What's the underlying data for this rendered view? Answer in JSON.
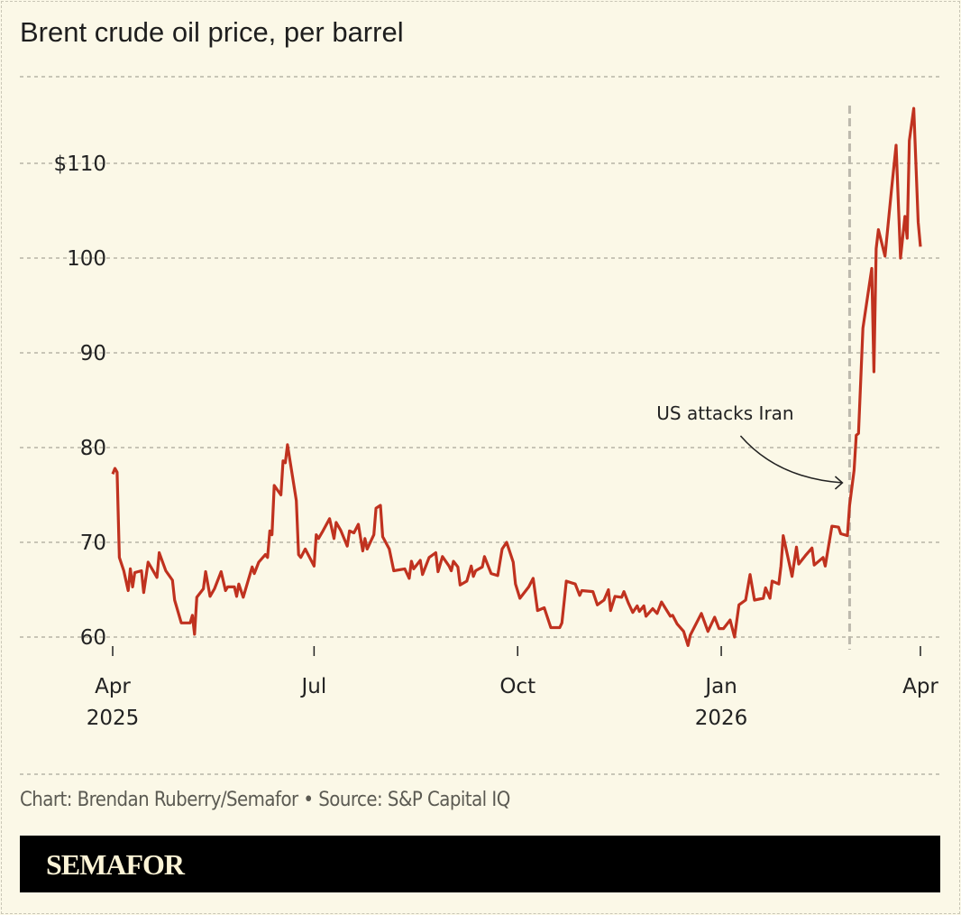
{
  "title": "Brent crude oil price, per barrel",
  "credit": "Chart: Brendan Ruberry/Semafor • Source: S&P Capital IQ",
  "brand": "SEMAFOR",
  "chart_data": {
    "type": "line",
    "title": "Brent crude oil price, per barrel",
    "xlabel": "",
    "ylabel": "",
    "xlim": [
      "2025-04-01",
      "2026-04-01"
    ],
    "ylim": [
      58,
      118
    ],
    "grid": true,
    "line_color": "#c0321f",
    "y_ticks": [
      {
        "value": 60,
        "label": "60"
      },
      {
        "value": 70,
        "label": "70"
      },
      {
        "value": 80,
        "label": "80"
      },
      {
        "value": 90,
        "label": "90"
      },
      {
        "value": 100,
        "label": "100"
      },
      {
        "value": 110,
        "label": "$110"
      }
    ],
    "x_ticks": [
      {
        "date": "2025-04-01",
        "label": "Apr",
        "year": "2025"
      },
      {
        "date": "2025-07-01",
        "label": "Jul",
        "year": ""
      },
      {
        "date": "2025-10-01",
        "label": "Oct",
        "year": ""
      },
      {
        "date": "2026-01-01",
        "label": "Jan",
        "year": "2026"
      },
      {
        "date": "2026-04-01",
        "label": "Apr",
        "year": ""
      }
    ],
    "annotation": {
      "date": "2026-02-28",
      "label": "US attacks Iran"
    },
    "series": [
      {
        "points": [
          [
            "2025-04-01",
            77.2
          ],
          [
            "2025-04-02",
            77.8
          ],
          [
            "2025-04-03",
            77.4
          ],
          [
            "2025-04-04",
            68.4
          ],
          [
            "2025-04-06",
            67.0
          ],
          [
            "2025-04-08",
            64.9
          ],
          [
            "2025-04-09",
            67.2
          ],
          [
            "2025-04-10",
            65.3
          ],
          [
            "2025-04-11",
            66.8
          ],
          [
            "2025-04-14",
            67.0
          ],
          [
            "2025-04-15",
            64.7
          ],
          [
            "2025-04-17",
            67.9
          ],
          [
            "2025-04-21",
            66.3
          ],
          [
            "2025-04-22",
            68.9
          ],
          [
            "2025-04-25",
            67.0
          ],
          [
            "2025-04-28",
            66.0
          ],
          [
            "2025-04-29",
            63.9
          ],
          [
            "2025-05-02",
            61.5
          ],
          [
            "2025-05-06",
            61.5
          ],
          [
            "2025-05-07",
            62.3
          ],
          [
            "2025-05-08",
            60.3
          ],
          [
            "2025-05-09",
            64.2
          ],
          [
            "2025-05-12",
            65.1
          ],
          [
            "2025-05-13",
            66.9
          ],
          [
            "2025-05-15",
            64.3
          ],
          [
            "2025-05-17",
            65.1
          ],
          [
            "2025-05-20",
            66.9
          ],
          [
            "2025-05-22",
            64.9
          ],
          [
            "2025-05-23",
            65.3
          ],
          [
            "2025-05-26",
            65.3
          ],
          [
            "2025-05-27",
            64.3
          ],
          [
            "2025-05-28",
            65.6
          ],
          [
            "2025-05-30",
            64.2
          ],
          [
            "2025-06-03",
            67.4
          ],
          [
            "2025-06-04",
            66.7
          ],
          [
            "2025-06-06",
            67.9
          ],
          [
            "2025-06-09",
            68.7
          ],
          [
            "2025-06-10",
            68.4
          ],
          [
            "2025-06-11",
            71.2
          ],
          [
            "2025-06-12",
            70.8
          ],
          [
            "2025-06-13",
            76.0
          ],
          [
            "2025-06-16",
            75.0
          ],
          [
            "2025-06-17",
            78.6
          ],
          [
            "2025-06-18",
            78.4
          ],
          [
            "2025-06-19",
            80.3
          ],
          [
            "2025-06-23",
            74.4
          ],
          [
            "2025-06-24",
            68.7
          ],
          [
            "2025-06-25",
            68.4
          ],
          [
            "2025-06-27",
            69.3
          ],
          [
            "2025-07-01",
            67.5
          ],
          [
            "2025-07-02",
            70.8
          ],
          [
            "2025-07-03",
            70.4
          ],
          [
            "2025-07-05",
            71.2
          ],
          [
            "2025-07-08",
            72.5
          ],
          [
            "2025-07-10",
            70.4
          ],
          [
            "2025-07-11",
            72.1
          ],
          [
            "2025-07-13",
            71.3
          ],
          [
            "2025-07-16",
            69.6
          ],
          [
            "2025-07-17",
            71.2
          ],
          [
            "2025-07-19",
            71.0
          ],
          [
            "2025-07-21",
            71.9
          ],
          [
            "2025-07-23",
            69.1
          ],
          [
            "2025-07-24",
            70.4
          ],
          [
            "2025-07-25",
            69.3
          ],
          [
            "2025-07-28",
            70.8
          ],
          [
            "2025-07-29",
            73.6
          ],
          [
            "2025-07-31",
            73.9
          ],
          [
            "2025-08-01",
            70.6
          ],
          [
            "2025-08-04",
            69.3
          ],
          [
            "2025-08-06",
            67.0
          ],
          [
            "2025-08-11",
            67.2
          ],
          [
            "2025-08-13",
            66.2
          ],
          [
            "2025-08-14",
            68.0
          ],
          [
            "2025-08-15",
            67.2
          ],
          [
            "2025-08-18",
            68.1
          ],
          [
            "2025-08-19",
            66.6
          ],
          [
            "2025-08-22",
            68.4
          ],
          [
            "2025-08-25",
            68.9
          ],
          [
            "2025-08-26",
            66.9
          ],
          [
            "2025-08-28",
            68.5
          ],
          [
            "2025-08-31",
            67.5
          ],
          [
            "2025-09-01",
            67.0
          ],
          [
            "2025-09-02",
            68.0
          ],
          [
            "2025-09-04",
            67.4
          ],
          [
            "2025-09-05",
            65.5
          ],
          [
            "2025-09-08",
            65.9
          ],
          [
            "2025-09-10",
            67.5
          ],
          [
            "2025-09-11",
            66.4
          ],
          [
            "2025-09-12",
            67.0
          ],
          [
            "2025-09-15",
            67.4
          ],
          [
            "2025-09-16",
            68.5
          ],
          [
            "2025-09-19",
            66.7
          ],
          [
            "2025-09-22",
            66.5
          ],
          [
            "2025-09-24",
            69.3
          ],
          [
            "2025-09-26",
            70.0
          ],
          [
            "2025-09-29",
            67.9
          ],
          [
            "2025-09-30",
            65.6
          ],
          [
            "2025-10-02",
            64.1
          ],
          [
            "2025-10-06",
            65.3
          ],
          [
            "2025-10-08",
            66.2
          ],
          [
            "2025-10-10",
            62.8
          ],
          [
            "2025-10-13",
            63.1
          ],
          [
            "2025-10-16",
            61.0
          ],
          [
            "2025-10-20",
            61.0
          ],
          [
            "2025-10-21",
            61.5
          ],
          [
            "2025-10-23",
            65.9
          ],
          [
            "2025-10-27",
            65.6
          ],
          [
            "2025-10-29",
            64.4
          ],
          [
            "2025-10-30",
            64.9
          ],
          [
            "2025-11-04",
            64.8
          ],
          [
            "2025-11-06",
            63.4
          ],
          [
            "2025-11-09",
            63.9
          ],
          [
            "2025-11-11",
            65.0
          ],
          [
            "2025-11-12",
            62.8
          ],
          [
            "2025-11-14",
            64.3
          ],
          [
            "2025-11-17",
            64.2
          ],
          [
            "2025-11-18",
            64.8
          ],
          [
            "2025-11-20",
            63.6
          ],
          [
            "2025-11-22",
            62.6
          ],
          [
            "2025-11-24",
            63.3
          ],
          [
            "2025-11-25",
            62.7
          ],
          [
            "2025-11-27",
            63.3
          ],
          [
            "2025-11-28",
            62.2
          ],
          [
            "2025-12-01",
            63.0
          ],
          [
            "2025-12-03",
            62.5
          ],
          [
            "2025-12-05",
            63.7
          ],
          [
            "2025-12-09",
            62.2
          ],
          [
            "2025-12-10",
            62.3
          ],
          [
            "2025-12-12",
            61.4
          ],
          [
            "2025-12-15",
            60.6
          ],
          [
            "2025-12-17",
            59.1
          ],
          [
            "2025-12-18",
            60.2
          ],
          [
            "2025-12-23",
            62.5
          ],
          [
            "2025-12-26",
            60.6
          ],
          [
            "2025-12-29",
            62.1
          ],
          [
            "2025-12-31",
            60.9
          ],
          [
            "2026-01-02",
            60.9
          ],
          [
            "2026-01-05",
            61.8
          ],
          [
            "2026-01-07",
            60.0
          ],
          [
            "2026-01-09",
            63.4
          ],
          [
            "2026-01-12",
            63.9
          ],
          [
            "2026-01-14",
            66.6
          ],
          [
            "2026-01-16",
            63.9
          ],
          [
            "2026-01-20",
            64.1
          ],
          [
            "2026-01-21",
            65.2
          ],
          [
            "2026-01-23",
            64.1
          ],
          [
            "2026-01-24",
            65.9
          ],
          [
            "2026-01-27",
            65.6
          ],
          [
            "2026-01-28",
            67.5
          ],
          [
            "2026-01-29",
            70.7
          ],
          [
            "2026-02-02",
            66.4
          ],
          [
            "2026-02-04",
            69.5
          ],
          [
            "2026-02-05",
            67.7
          ],
          [
            "2026-02-08",
            68.6
          ],
          [
            "2026-02-11",
            69.4
          ],
          [
            "2026-02-12",
            67.6
          ],
          [
            "2026-02-16",
            68.4
          ],
          [
            "2026-02-17",
            67.5
          ],
          [
            "2026-02-20",
            71.7
          ],
          [
            "2026-02-23",
            71.6
          ],
          [
            "2026-02-24",
            70.9
          ],
          [
            "2026-02-27",
            70.7
          ],
          [
            "2026-02-28",
            73.9
          ],
          [
            "2026-03-02",
            77.6
          ],
          [
            "2026-03-03",
            81.3
          ],
          [
            "2026-03-04",
            81.5
          ],
          [
            "2026-03-06",
            92.6
          ],
          [
            "2026-03-10",
            98.9
          ],
          [
            "2026-03-11",
            88.0
          ],
          [
            "2026-03-12",
            101.0
          ],
          [
            "2026-03-13",
            103.0
          ],
          [
            "2026-03-16",
            100.2
          ],
          [
            "2026-03-19",
            107.4
          ],
          [
            "2026-03-21",
            111.9
          ],
          [
            "2026-03-23",
            100.0
          ],
          [
            "2026-03-25",
            104.4
          ],
          [
            "2026-03-26",
            102.1
          ],
          [
            "2026-03-27",
            112.4
          ],
          [
            "2026-03-29",
            115.8
          ],
          [
            "2026-03-31",
            103.8
          ],
          [
            "2026-04-01",
            101.2
          ]
        ]
      }
    ]
  }
}
